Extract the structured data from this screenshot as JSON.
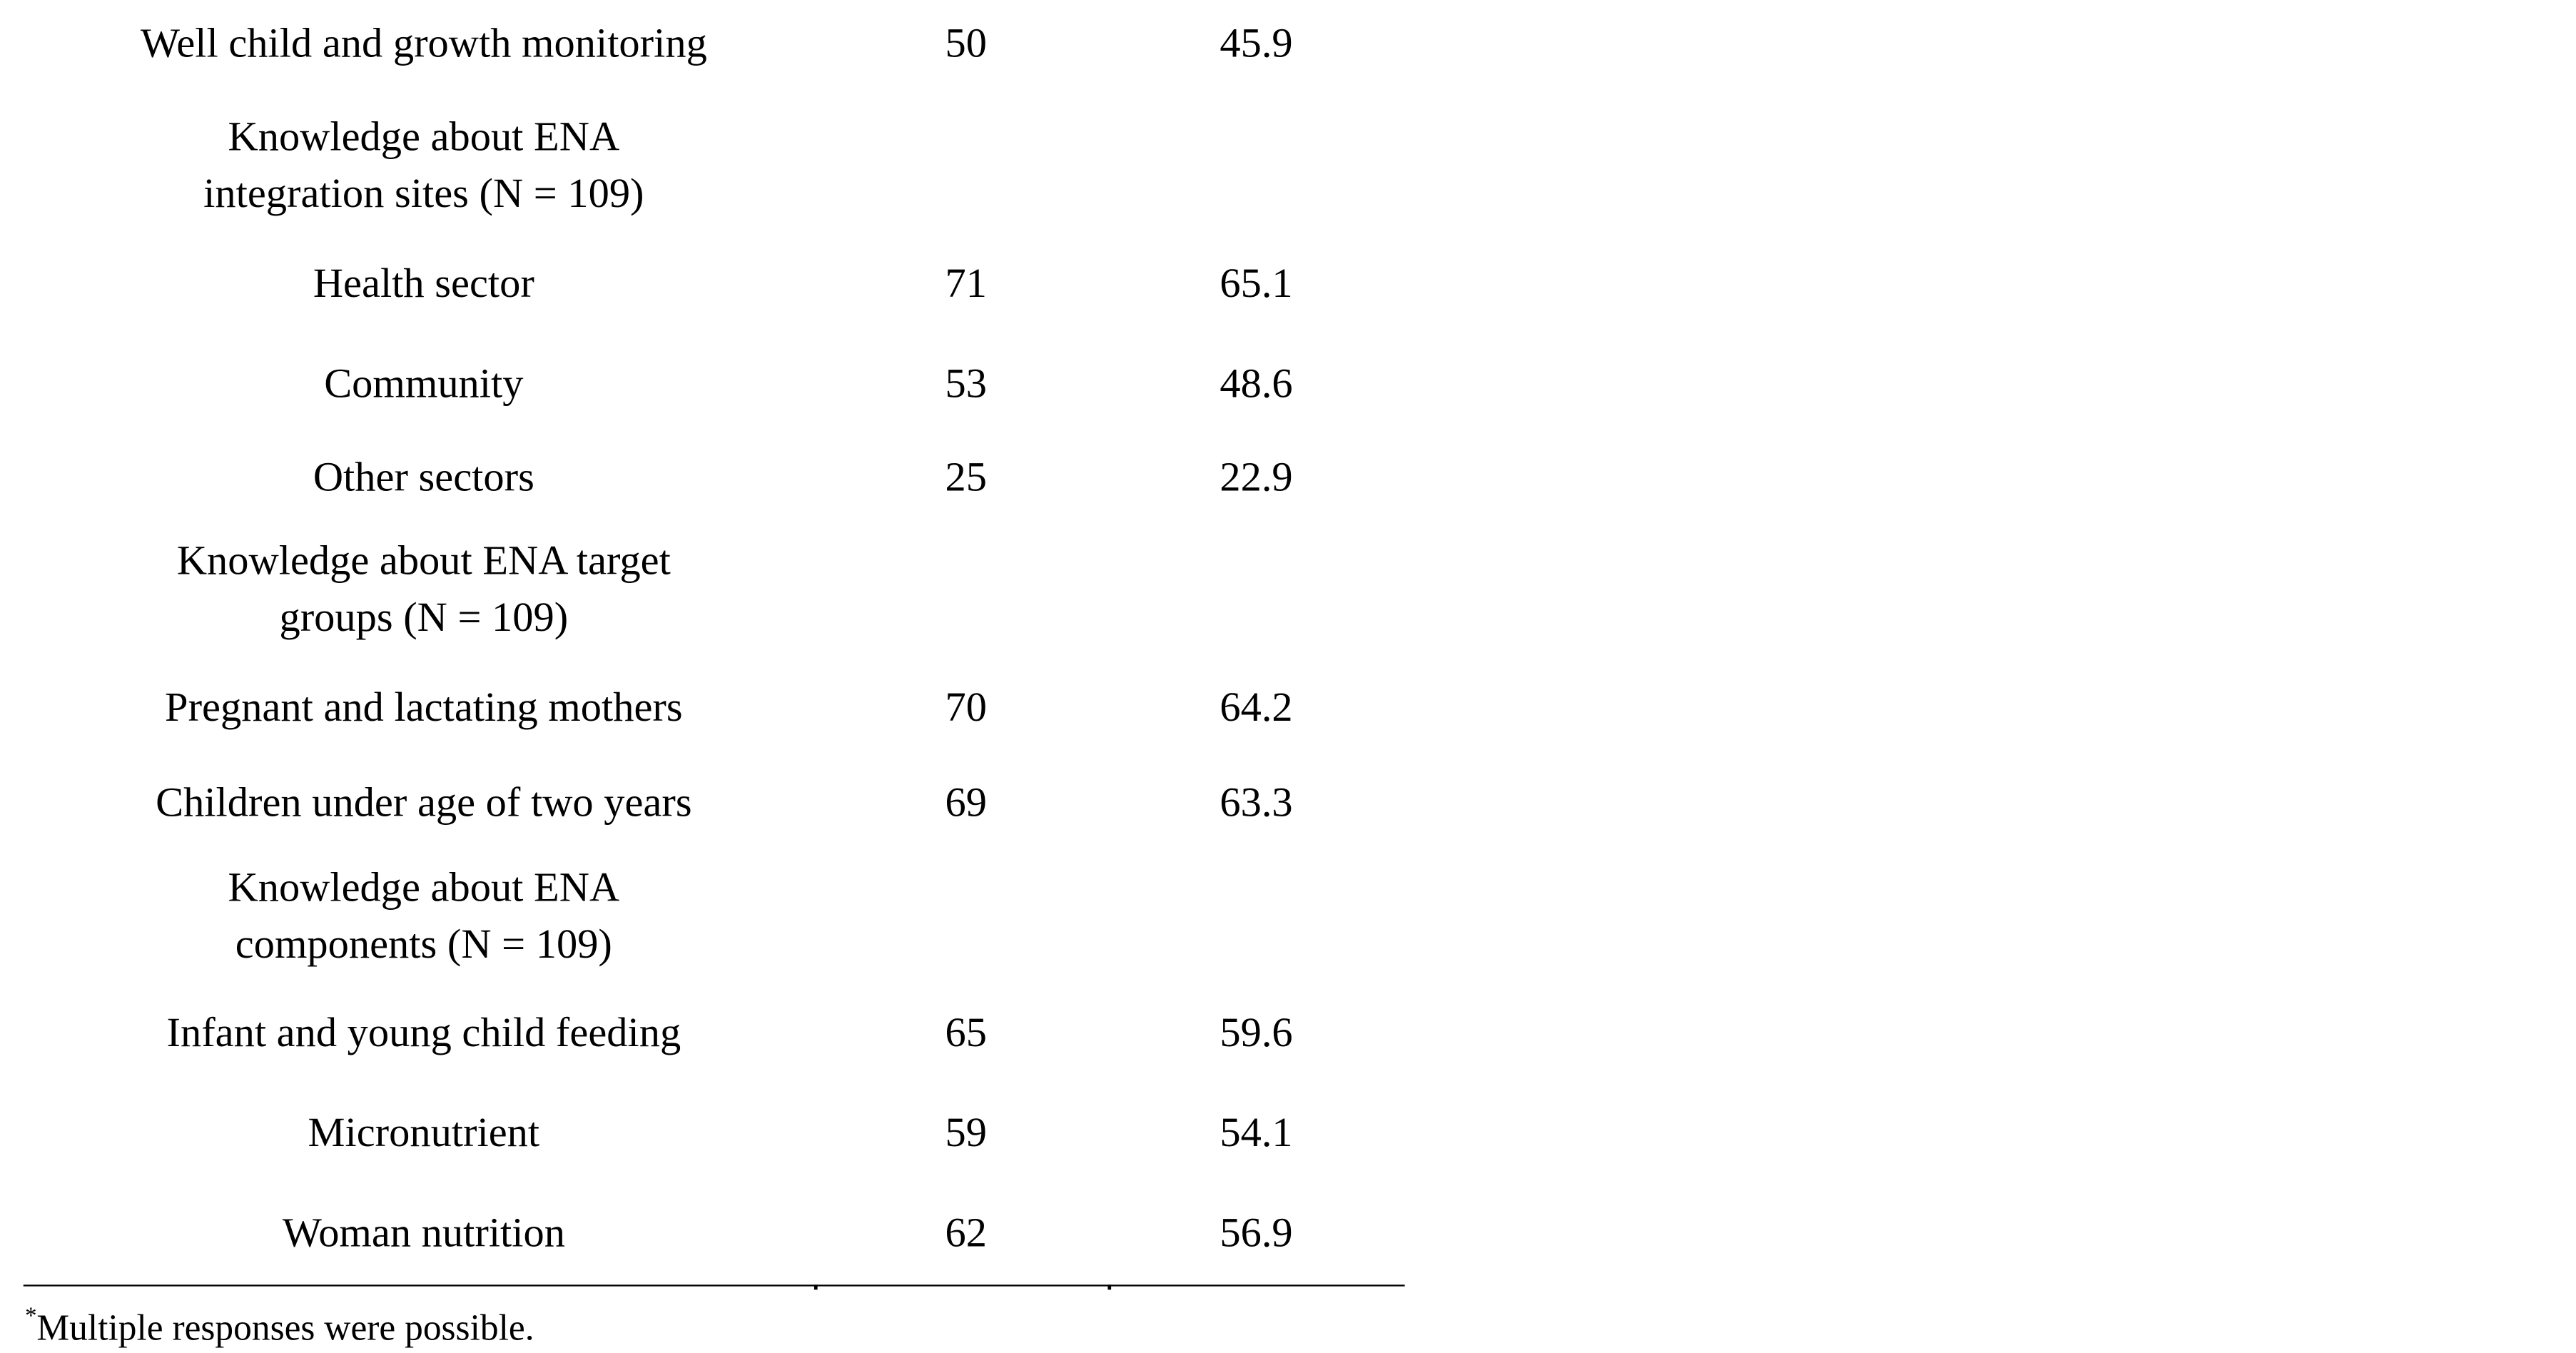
{
  "table": {
    "rows": [
      {
        "label": "Well child and growth monitoring",
        "n": "50",
        "pct": "45.9"
      },
      {
        "label": "Knowledge about ENA integration sites (N = 109)",
        "n": "",
        "pct": ""
      },
      {
        "label": "Health sector",
        "n": "71",
        "pct": "65.1"
      },
      {
        "label": "Community",
        "n": "53",
        "pct": "48.6"
      },
      {
        "label": "Other sectors",
        "n": "25",
        "pct": "22.9"
      },
      {
        "label": "Knowledge about ENA target groups (N = 109)",
        "n": "",
        "pct": ""
      },
      {
        "label": "Pregnant and lactating mothers",
        "n": "70",
        "pct": "64.2"
      },
      {
        "label": "Children under age of two years",
        "n": "69",
        "pct": "63.3"
      },
      {
        "label": "Knowledge about ENA components (N = 109)",
        "n": "",
        "pct": ""
      },
      {
        "label": "Infant and young child feeding",
        "n": "65",
        "pct": "59.6"
      },
      {
        "label": "Micronutrient",
        "n": "59",
        "pct": "54.1"
      },
      {
        "label": "Woman nutrition",
        "n": "62",
        "pct": "56.9"
      }
    ]
  },
  "footnote": {
    "marker": "*",
    "text": "Multiple responses were possible."
  }
}
